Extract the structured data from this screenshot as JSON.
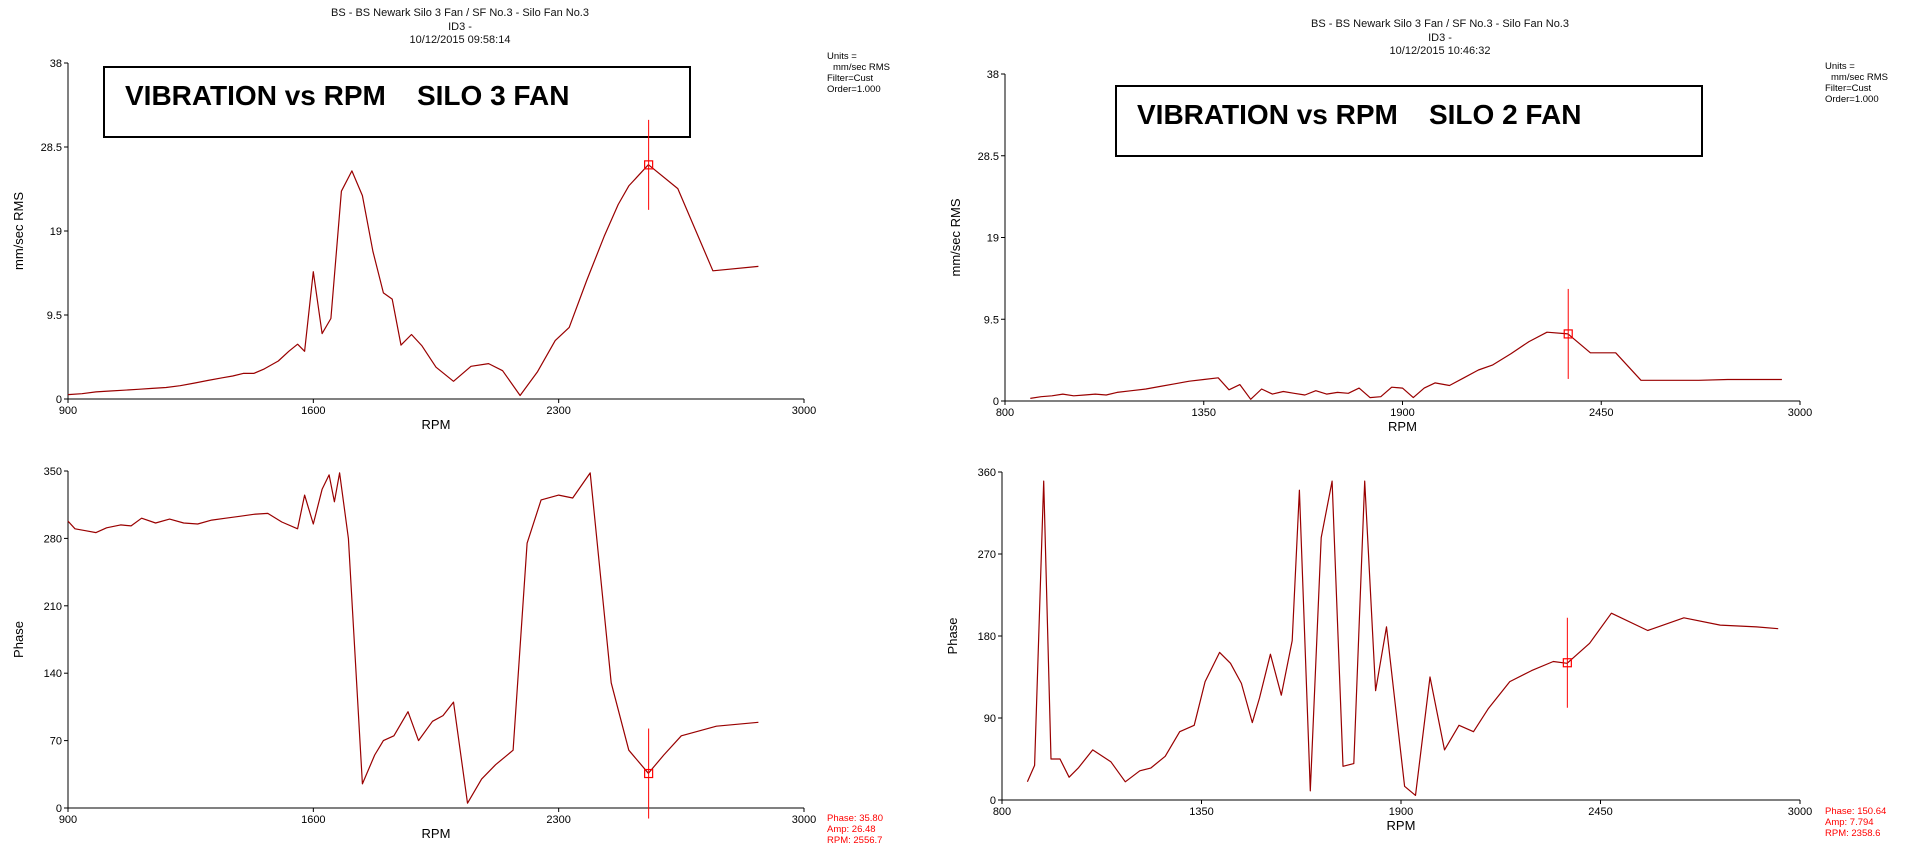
{
  "colors": {
    "series": "#990000",
    "cursor": "#ff0000",
    "axis": "#000000"
  },
  "left": {
    "header": {
      "line1": "BS - BS Newark Silo 3 Fan / SF No.3 - Silo Fan No.3",
      "line2": "ID3 -",
      "line3": "10/12/2015 09:58:14"
    },
    "banner": "VIBRATION vs RPM    SILO 3 FAN",
    "units": {
      "line1": "Units =",
      "line2": "mm/sec RMS",
      "line3": "Filter=Cust",
      "line4": "Order=1.000"
    },
    "readout": {
      "phase": "Phase: 35.80",
      "amp": "Amp: 26.48",
      "rpm": "RPM: 2556.7"
    }
  },
  "right": {
    "header": {
      "line1": "BS - BS Newark Silo 3 Fan / SF No.3 - Silo Fan No.3",
      "line2": "ID3 -",
      "line3": "10/12/2015 10:46:32"
    },
    "banner": "VIBRATION vs RPM    SILO 2 FAN",
    "units": {
      "line1": "Units =",
      "line2": "mm/sec RMS",
      "line3": "Filter=Cust",
      "line4": "Order=1.000"
    },
    "readout": {
      "phase": "Phase: 150.64",
      "amp": "Amp: 7.794",
      "rpm": "RPM: 2358.6"
    }
  },
  "chart_data": [
    {
      "id": "silo3-amplitude",
      "type": "line",
      "xlabel": "RPM",
      "ylabel": "mm/sec RMS",
      "xlim": [
        900,
        3000
      ],
      "ylim": [
        0,
        38
      ],
      "xticks": [
        900,
        1600,
        2300,
        3000
      ],
      "yticks": [
        "0",
        "9.5",
        "19",
        "28.5",
        "38"
      ],
      "cursor": {
        "x": 2556.7,
        "y": 26.48
      },
      "x": [
        900,
        940,
        980,
        1020,
        1060,
        1100,
        1140,
        1180,
        1220,
        1260,
        1300,
        1340,
        1370,
        1400,
        1430,
        1460,
        1500,
        1530,
        1555,
        1575,
        1600,
        1625,
        1650,
        1680,
        1710,
        1740,
        1770,
        1800,
        1825,
        1850,
        1880,
        1910,
        1950,
        2000,
        2050,
        2100,
        2140,
        2190,
        2240,
        2290,
        2330,
        2380,
        2430,
        2470,
        2500,
        2556,
        2640,
        2740,
        2870
      ],
      "y": [
        0.5,
        0.6,
        0.8,
        0.9,
        1.0,
        1.1,
        1.2,
        1.3,
        1.5,
        1.8,
        2.1,
        2.4,
        2.6,
        2.9,
        2.9,
        3.4,
        4.3,
        5.4,
        6.2,
        5.4,
        14.4,
        7.4,
        9.1,
        23.5,
        25.8,
        23.0,
        16.7,
        12.0,
        11.3,
        6.1,
        7.3,
        6.0,
        3.6,
        2.0,
        3.7,
        4.0,
        3.2,
        0.4,
        3.1,
        6.6,
        8.1,
        13.4,
        18.4,
        22.0,
        24.1,
        26.5,
        23.8,
        14.5,
        15.0
      ]
    },
    {
      "id": "silo3-phase",
      "type": "line",
      "xlabel": "RPM",
      "ylabel": "Phase",
      "xlim": [
        900,
        3000
      ],
      "ylim": [
        0,
        350
      ],
      "xticks": [
        900,
        1600,
        2300,
        3000
      ],
      "yticks": [
        "0",
        "70",
        "140",
        "210",
        "280",
        "350"
      ],
      "cursor": {
        "x": 2556.7,
        "y": 35.8
      },
      "x": [
        900,
        920,
        950,
        980,
        1010,
        1050,
        1080,
        1110,
        1150,
        1190,
        1230,
        1270,
        1310,
        1350,
        1390,
        1430,
        1470,
        1510,
        1555,
        1575,
        1600,
        1625,
        1645,
        1660,
        1675,
        1700,
        1740,
        1775,
        1800,
        1830,
        1870,
        1900,
        1940,
        1970,
        2000,
        2040,
        2080,
        2120,
        2170,
        2210,
        2250,
        2300,
        2340,
        2390,
        2450,
        2500,
        2556,
        2600,
        2650,
        2750,
        2870
      ],
      "y": [
        298,
        290,
        288,
        286,
        291,
        294,
        293,
        301,
        296,
        300,
        296,
        295,
        299,
        301,
        303,
        305,
        306,
        297,
        290,
        325,
        295,
        331,
        346,
        318,
        348,
        280,
        25,
        55,
        70,
        75,
        100,
        70,
        90,
        96,
        110,
        5,
        30,
        45,
        60,
        275,
        320,
        325,
        322,
        348,
        130,
        60,
        36,
        55,
        75,
        85,
        89
      ]
    },
    {
      "id": "silo2-amplitude",
      "type": "line",
      "xlabel": "RPM",
      "ylabel": "mm/sec RMS",
      "xlim": [
        800,
        3000
      ],
      "ylim": [
        0,
        38
      ],
      "xticks": [
        800,
        1350,
        1900,
        2450,
        3000
      ],
      "yticks": [
        "0",
        "9.5",
        "19",
        "28.5",
        "38"
      ],
      "cursor": {
        "x": 2358.6,
        "y": 7.794
      },
      "x": [
        870,
        900,
        930,
        960,
        990,
        1020,
        1050,
        1080,
        1110,
        1150,
        1190,
        1230,
        1270,
        1310,
        1350,
        1390,
        1420,
        1450,
        1480,
        1510,
        1540,
        1570,
        1600,
        1630,
        1660,
        1690,
        1720,
        1750,
        1780,
        1810,
        1840,
        1870,
        1900,
        1930,
        1960,
        1990,
        2030,
        2070,
        2110,
        2150,
        2200,
        2250,
        2300,
        2358,
        2420,
        2490,
        2560,
        2640,
        2720,
        2800,
        2880,
        2950
      ],
      "y": [
        0.3,
        0.5,
        0.6,
        0.8,
        0.6,
        0.7,
        0.8,
        0.7,
        1.0,
        1.2,
        1.4,
        1.7,
        2.0,
        2.3,
        2.5,
        2.7,
        1.3,
        1.9,
        0.2,
        1.4,
        0.8,
        1.1,
        0.9,
        0.7,
        1.2,
        0.8,
        1.0,
        0.9,
        1.5,
        0.4,
        0.5,
        1.6,
        1.5,
        0.4,
        1.5,
        2.1,
        1.8,
        2.7,
        3.6,
        4.2,
        5.5,
        6.9,
        8.0,
        7.8,
        5.6,
        5.6,
        2.4,
        2.4,
        2.4,
        2.5,
        2.5,
        2.5
      ]
    },
    {
      "id": "silo2-phase",
      "type": "line",
      "xlabel": "RPM",
      "ylabel": "Phase",
      "xlim": [
        800,
        3000
      ],
      "ylim": [
        0,
        360
      ],
      "xticks": [
        800,
        1350,
        1900,
        2450,
        3000
      ],
      "yticks": [
        "0",
        "90",
        "180",
        "270",
        "360"
      ],
      "cursor": {
        "x": 2358.6,
        "y": 150.64
      },
      "x": [
        870,
        890,
        915,
        935,
        960,
        985,
        1010,
        1050,
        1100,
        1140,
        1180,
        1210,
        1250,
        1290,
        1330,
        1360,
        1400,
        1430,
        1460,
        1490,
        1510,
        1540,
        1570,
        1600,
        1620,
        1650,
        1680,
        1710,
        1740,
        1770,
        1800,
        1830,
        1860,
        1880,
        1910,
        1940,
        1980,
        2020,
        2060,
        2100,
        2140,
        2200,
        2260,
        2320,
        2358,
        2420,
        2480,
        2580,
        2680,
        2780,
        2880,
        2940
      ],
      "y": [
        20,
        38,
        350,
        45,
        45,
        25,
        35,
        55,
        42,
        20,
        32,
        35,
        48,
        75,
        82,
        130,
        162,
        150,
        128,
        85,
        112,
        160,
        115,
        175,
        340,
        10,
        288,
        350,
        37,
        40,
        350,
        120,
        190,
        120,
        15,
        5,
        135,
        55,
        82,
        75,
        100,
        130,
        142,
        152,
        150,
        172,
        205,
        186,
        200,
        192,
        190,
        188
      ]
    }
  ]
}
